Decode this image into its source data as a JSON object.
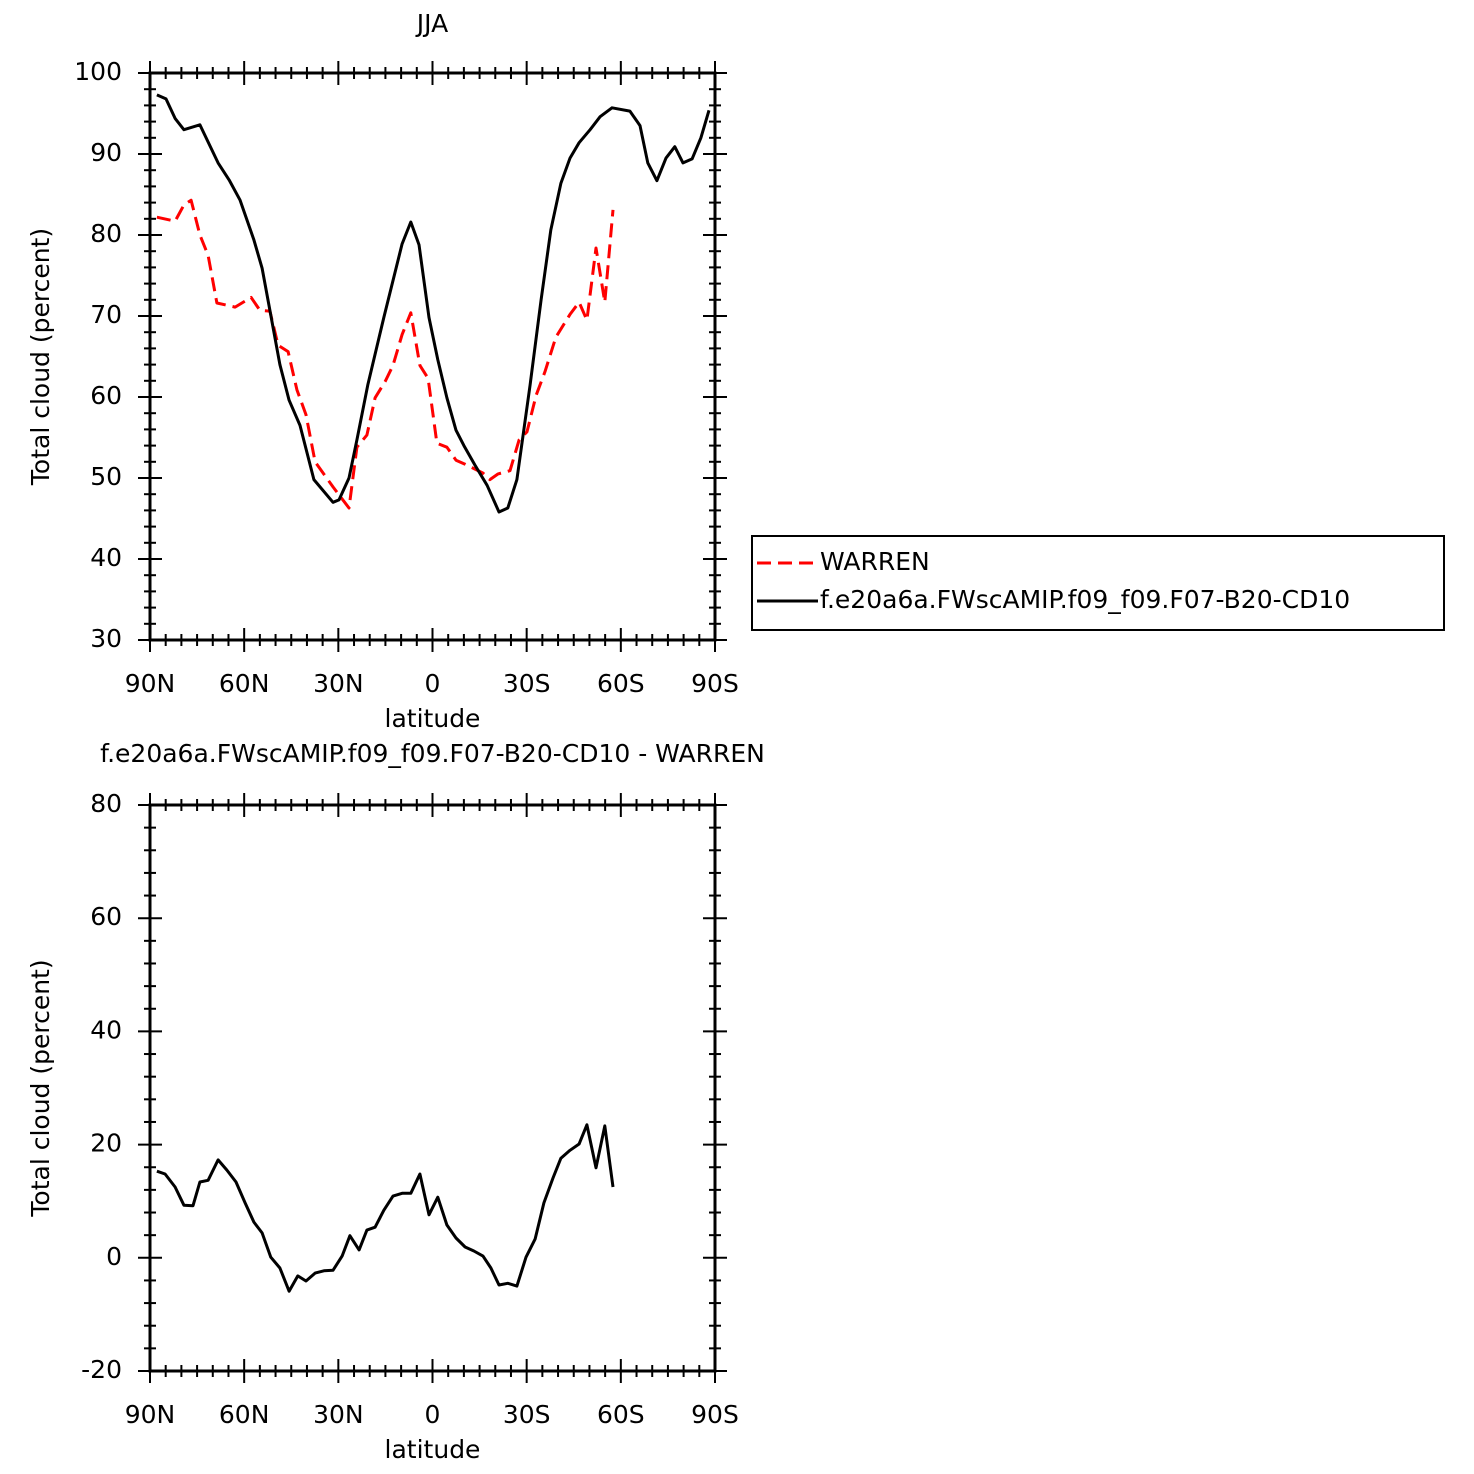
{
  "chart_data": [
    {
      "type": "line",
      "title": "JJA",
      "xlabel": "latitude",
      "ylabel": "Total cloud (percent)",
      "xlim": [
        90,
        -90
      ],
      "xticks": [
        {
          "value": 90,
          "label": "90N"
        },
        {
          "value": 60,
          "label": "60N"
        },
        {
          "value": 30,
          "label": "30N"
        },
        0,
        {
          "value": -30,
          "label": "30S"
        },
        {
          "value": -60,
          "label": "60S"
        },
        {
          "value": -90,
          "label": "90S"
        }
      ],
      "ylim": [
        30,
        100
      ],
      "yticks": [
        30,
        40,
        50,
        60,
        70,
        80,
        90,
        100
      ],
      "legend": "right",
      "series": [
        {
          "name": "WARREN",
          "color": "#ff0000",
          "style": "dashed",
          "x": [
            87.8,
            82.0,
            79.2,
            76.9,
            74.1,
            71.5,
            68.7,
            62.9,
            57.8,
            55.0,
            51.8,
            49.2,
            46.0,
            43.2,
            40.3,
            37.4,
            31.7,
            26.6,
            24.1,
            20.9,
            18.3,
            15.1,
            12.6,
            9.7,
            6.9,
            4.0,
            1.4,
            -1.4,
            -4.6,
            -7.5,
            -10.4,
            -16.1,
            -18.3,
            -20.9,
            -24.7,
            -27.6,
            -30.1,
            -33.0,
            -35.8,
            -39.3,
            -43.8,
            -46.7,
            -49.2,
            -52.1,
            -54.9,
            -57.5
          ],
          "values": [
            82.2,
            81.7,
            83.7,
            84.3,
            80.0,
            77.5,
            71.6,
            71.1,
            72.3,
            70.7,
            70.6,
            66.4,
            65.6,
            60.9,
            57.8,
            52.0,
            48.9,
            46.3,
            53.8,
            55.3,
            59.9,
            61.9,
            63.9,
            67.7,
            70.4,
            63.9,
            62.3,
            54.3,
            53.8,
            52.2,
            51.7,
            50.6,
            49.8,
            50.5,
            50.9,
            54.7,
            55.7,
            60.2,
            63.1,
            67.4,
            70.2,
            71.7,
            69.5,
            78.4,
            71.7,
            83.1
          ]
        },
        {
          "name": "f.e20a6a.FWscAMIP.f09_f09.F07-B20-CD10",
          "color": "#000000",
          "style": "solid",
          "x": [
            87.8,
            84.9,
            82.0,
            79.2,
            74.1,
            68.3,
            64.8,
            61.3,
            56.9,
            54.3,
            51.8,
            48.6,
            45.7,
            42.2,
            37.8,
            31.7,
            29.8,
            26.6,
            24.1,
            20.6,
            15.5,
            9.7,
            6.9,
            4.3,
            1.1,
            -1.7,
            -4.6,
            -7.5,
            -10.0,
            -13.5,
            -17.4,
            -21.2,
            -24.0,
            -26.9,
            -31.1,
            -34.6,
            -37.7,
            -40.9,
            -43.8,
            -46.7,
            -50.2,
            -53.4,
            -57.2,
            -62.9,
            -66.1,
            -68.6,
            -71.5,
            -74.4,
            -77.2,
            -79.8,
            -82.7,
            -85.5,
            -88.1
          ],
          "values": [
            97.3,
            96.8,
            94.4,
            93.0,
            93.6,
            88.9,
            86.8,
            84.3,
            79.4,
            75.9,
            70.7,
            64.0,
            59.6,
            56.5,
            49.8,
            47.0,
            47.3,
            50.0,
            54.7,
            61.5,
            69.8,
            78.9,
            81.6,
            78.8,
            69.8,
            64.6,
            59.9,
            55.9,
            54.0,
            51.6,
            49.1,
            45.8,
            46.3,
            49.8,
            61.5,
            72.0,
            80.6,
            86.4,
            89.5,
            91.4,
            93.0,
            94.6,
            95.7,
            95.3,
            93.5,
            88.9,
            86.7,
            89.5,
            90.9,
            88.9,
            89.4,
            92.0,
            95.4
          ]
        }
      ]
    },
    {
      "type": "line",
      "title": "f.e20a6a.FWscAMIP.f09_f09.F07-B20-CD10 - WARREN",
      "xlabel": "latitude",
      "ylabel": "Total cloud (percent)",
      "xlim": [
        90,
        -90
      ],
      "xticks": [
        {
          "value": 90,
          "label": "90N"
        },
        {
          "value": 60,
          "label": "60N"
        },
        {
          "value": 30,
          "label": "30N"
        },
        0,
        {
          "value": -30,
          "label": "30S"
        },
        {
          "value": -60,
          "label": "60S"
        },
        {
          "value": -90,
          "label": "90S"
        }
      ],
      "ylim": [
        -20,
        80
      ],
      "yticks": [
        -20,
        0,
        20,
        40,
        60,
        80
      ],
      "series": [
        {
          "color": "#000000",
          "style": "solid",
          "x": [
            87.8,
            85.2,
            82.0,
            79.2,
            76.3,
            74.1,
            71.5,
            68.3,
            65.5,
            62.6,
            59.7,
            56.9,
            54.3,
            51.5,
            48.6,
            45.7,
            42.9,
            40.3,
            37.4,
            34.6,
            31.7,
            28.8,
            26.3,
            23.4,
            20.9,
            18.3,
            15.5,
            12.6,
            9.7,
            6.9,
            4.0,
            1.1,
            -1.7,
            -4.6,
            -7.5,
            -10.4,
            -13.2,
            -16.1,
            -18.6,
            -21.2,
            -24.0,
            -26.9,
            -29.8,
            -32.7,
            -35.5,
            -38.4,
            -40.9,
            -43.8,
            -46.7,
            -49.2,
            -52.1,
            -54.9,
            -57.5
          ],
          "values": [
            15.3,
            14.8,
            12.5,
            9.3,
            9.2,
            13.4,
            13.7,
            17.3,
            15.5,
            13.4,
            9.7,
            6.3,
            4.4,
            0.1,
            -1.8,
            -5.9,
            -3.2,
            -4.1,
            -2.7,
            -2.3,
            -2.2,
            0.3,
            3.9,
            1.4,
            4.9,
            5.4,
            8.4,
            10.9,
            11.4,
            11.4,
            14.8,
            7.6,
            10.7,
            5.8,
            3.5,
            1.9,
            1.2,
            0.3,
            -1.8,
            -4.8,
            -4.5,
            -5.0,
            0.1,
            3.3,
            9.7,
            14.1,
            17.6,
            19.0,
            20.1,
            23.5,
            15.9,
            23.3,
            12.5
          ]
        }
      ]
    }
  ]
}
